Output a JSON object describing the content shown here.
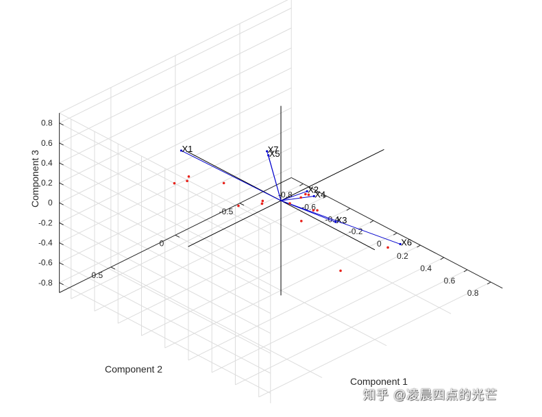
{
  "chart_data": {
    "type": "scatter",
    "subtype": "3d-biplot",
    "title": "",
    "xlabel": "Component 1",
    "ylabel": "Component 2",
    "zlabel": "Component 3",
    "xlim": [
      -0.9,
      0.9
    ],
    "ylim": [
      -0.9,
      0.9
    ],
    "zlim": [
      -0.9,
      0.9
    ],
    "x_ticks": [
      "-0.8",
      "-0.6",
      "-0.4",
      "-0.2",
      "0",
      "0.2",
      "0.4",
      "0.6",
      "0.8"
    ],
    "y_ticks": [
      "0.5",
      "0",
      "-0.5"
    ],
    "z_ticks": [
      "0.8",
      "0.6",
      "0.4",
      "0.2",
      "0",
      "-0.2",
      "-0.4",
      "-0.6",
      "-0.8"
    ],
    "grid": true,
    "colors": {
      "vector": "#0000cc",
      "score": "#e8221b",
      "axis": "#000000",
      "grid": "#dcdcdc",
      "box": "#262626"
    },
    "vectors": [
      {
        "label": "X1",
        "x": -0.74,
        "y": 0.1,
        "z": 0.11
      },
      {
        "label": "X2",
        "x": 0.08,
        "y": -0.13,
        "z": 0.06
      },
      {
        "label": "X3",
        "x": 0.63,
        "y": 0.15,
        "z": 0.27
      },
      {
        "label": "X4",
        "x": 0.15,
        "y": -0.12,
        "z": 0.06
      },
      {
        "label": "X5",
        "x": -0.03,
        "y": 0.07,
        "z": 0.48
      },
      {
        "label": "X6",
        "x": 0.6,
        "y": -0.38,
        "z": -0.31
      },
      {
        "label": "X7",
        "x": -0.02,
        "y": 0.09,
        "z": 0.54
      }
    ],
    "scores": [
      {
        "x": -0.37,
        "y": 0.49,
        "z": 0.26
      },
      {
        "x": -0.47,
        "y": 0.3,
        "z": 0.1
      },
      {
        "x": -0.5,
        "y": 0.26,
        "z": 0.1
      },
      {
        "x": -0.3,
        "y": 0.17,
        "z": 0.1
      },
      {
        "x": -0.09,
        "y": 0.06,
        "z": -0.02
      },
      {
        "x": 0.01,
        "y": -0.06,
        "z": -0.06
      },
      {
        "x": 0.13,
        "y": -0.04,
        "z": -0.15
      },
      {
        "x": 0.09,
        "y": -0.17,
        "z": -0.15
      },
      {
        "x": 0.09,
        "y": -0.2,
        "z": -0.17
      },
      {
        "x": -0.45,
        "y": -0.08,
        "z": -0.38
      },
      {
        "x": -0.37,
        "y": -0.19,
        "z": -0.38
      },
      {
        "x": 0.39,
        "y": 0.2,
        "z": 0.4
      },
      {
        "x": 0.44,
        "y": 0.21,
        "z": 0.47
      },
      {
        "x": 0.5,
        "y": 0.24,
        "z": 0.52
      },
      {
        "x": 0.75,
        "y": 0.22,
        "z": -0.1
      },
      {
        "x": 0.56,
        "y": -0.32,
        "z": -0.33
      }
    ]
  },
  "watermark": "知乎 @凌晨四点的光芒"
}
